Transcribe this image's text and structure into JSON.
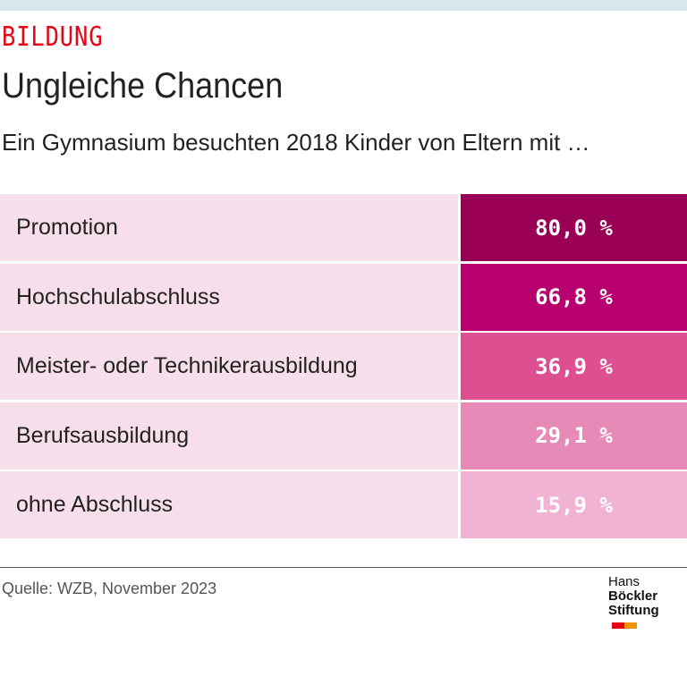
{
  "header": {
    "kicker": "BILDUNG",
    "title": "Ungleiche Chancen",
    "subtitle": "Ein Gymnasium besuchten 2018 Kinder von Eltern mit …"
  },
  "chart_data": {
    "type": "table",
    "categories": [
      "Promotion",
      "Hochschulabschluss",
      "Meister- oder Technikerausbildung",
      "Berufsausbildung",
      "ohne Abschluss"
    ],
    "values": [
      80.0,
      66.8,
      36.9,
      29.1,
      15.9
    ],
    "value_labels": [
      "80,0 %",
      "66,8 %",
      "36,9 %",
      "29,1 %",
      "15,9 %"
    ],
    "colors": [
      "#990055",
      "#b8006e",
      "#de4f91",
      "#e88ab8",
      "#f0b3d3"
    ],
    "label_bg": "#f6dfeb"
  },
  "footer": {
    "source": "Quelle: WZB, November 2023",
    "logo_line1_a": "Hans",
    "logo_line1_b": "Böckler",
    "logo_line2": "Stiftung"
  }
}
